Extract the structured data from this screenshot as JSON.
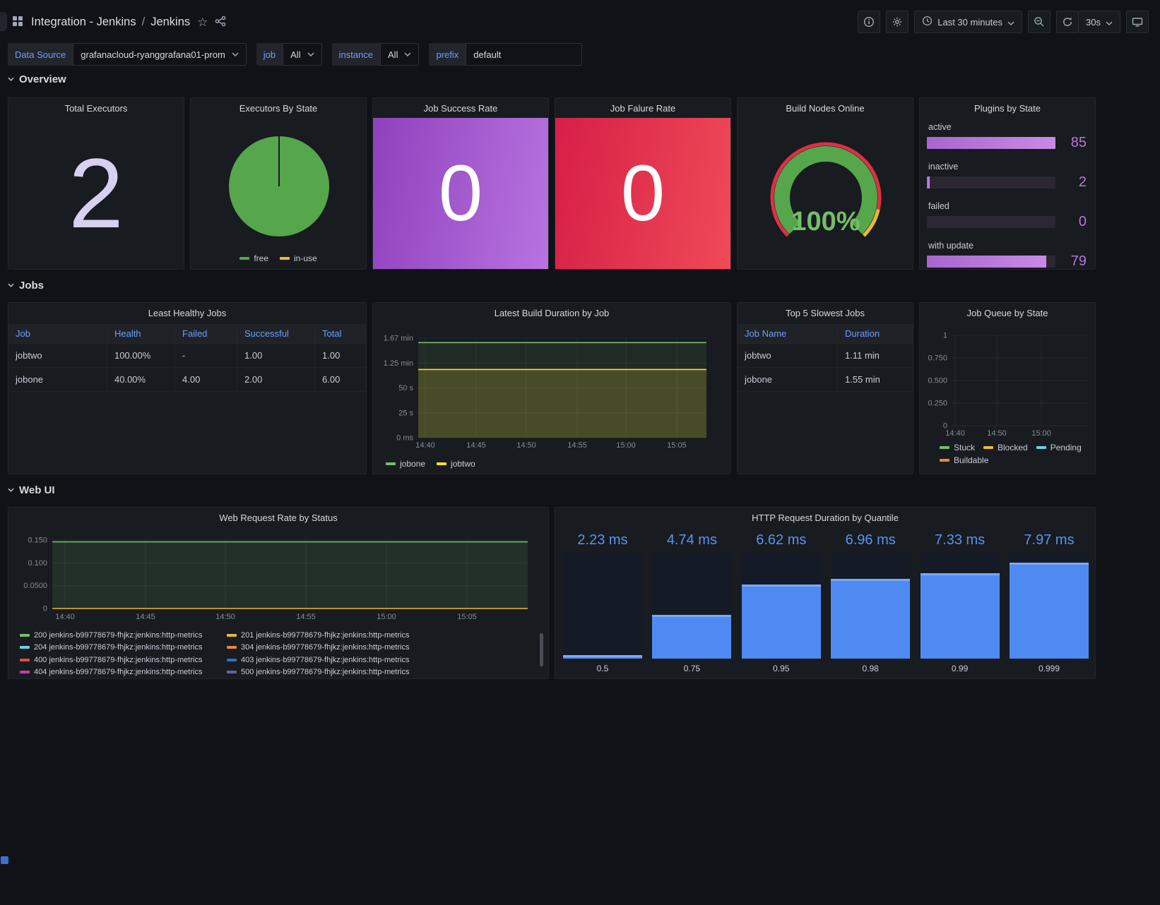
{
  "header": {
    "breadcrumb": {
      "folder": "Integration - Jenkins",
      "separator": "/",
      "dashboard": "Jenkins"
    },
    "toolbar": {
      "time_range_label": "Last 30 minutes",
      "refresh_interval_label": "30s"
    },
    "icons": [
      "apps-grid",
      "star",
      "share",
      "info-circle",
      "settings-gear",
      "clock",
      "chevron-down",
      "zoom-out",
      "refresh",
      "tv-monitor"
    ]
  },
  "variables": [
    {
      "label": "Data Source",
      "value": "grafanacloud-ryanggrafana01-prom"
    },
    {
      "label": "job",
      "value": "All"
    },
    {
      "label": "instance",
      "value": "All"
    },
    {
      "label": "prefix",
      "value": "default"
    }
  ],
  "sections": [
    {
      "label": "Overview"
    },
    {
      "label": "Jobs"
    },
    {
      "label": "Web UI"
    }
  ],
  "panels": {
    "total_executors": {
      "title": "Total Executors",
      "value": "2",
      "value_color": "#d7d0f1"
    },
    "executors_by_state": {
      "title": "Executors By State"
    },
    "job_success_rate": {
      "title": "Job Success Rate",
      "value": "0",
      "gradient": [
        "#8f41bd",
        "#b873e0"
      ]
    },
    "job_failure_rate": {
      "title": "Job Falure Rate",
      "value": "0",
      "gradient": [
        "#d61f47",
        "#f04a57"
      ]
    },
    "build_nodes_online": {
      "title": "Build Nodes Online"
    },
    "plugins_by_state": {
      "title": "Plugins by State",
      "max": 85,
      "bar_color": "#B877D9",
      "bars": [
        {
          "label": "active",
          "value": 85
        },
        {
          "label": "inactive",
          "value": 2
        },
        {
          "label": "failed",
          "value": 0
        },
        {
          "label": "with update",
          "value": 79
        }
      ]
    },
    "least_healthy_jobs": {
      "title": "Least Healthy Jobs",
      "columns": [
        "Job",
        "Health",
        "Failed",
        "Successful",
        "Total"
      ],
      "rows": [
        [
          "jobtwo",
          "100.00%",
          "-",
          "1.00",
          "1.00"
        ],
        [
          "jobone",
          "40.00%",
          "4.00",
          "2.00",
          "6.00"
        ]
      ]
    },
    "latest_build_duration": {
      "title": "Latest Build Duration by Job"
    },
    "top_5_slowest_jobs": {
      "title": "Top 5 Slowest Jobs",
      "columns": [
        "Job Name",
        "Duration"
      ],
      "rows": [
        [
          "jobtwo",
          "1.11 min"
        ],
        [
          "jobone",
          "1.55 min"
        ]
      ]
    },
    "job_queue_by_state": {
      "title": "Job Queue by State"
    },
    "web_request_rate": {
      "title": "Web Request Rate by Status"
    },
    "http_request_duration": {
      "title": "HTTP Request Duration by Quantile"
    }
  },
  "chart_data": [
    {
      "id": "executors_by_state",
      "type": "pie",
      "title": "Executors By State",
      "slices": [
        {
          "label": "free",
          "value": 2,
          "color": "#56A64B"
        },
        {
          "label": "in-use",
          "value": 0,
          "color": "#EAB839"
        }
      ]
    },
    {
      "id": "build_nodes_online",
      "type": "gauge",
      "title": "Build Nodes Online",
      "value_percent": 100,
      "value_label": "100%",
      "arc_color": "#56A64B",
      "ring_colors": {
        "red": "#E02F44",
        "yellow": "#EAB839"
      }
    },
    {
      "id": "latest_build_duration",
      "type": "line",
      "title": "Latest Build Duration by Job",
      "x_ticks": [
        "14:40",
        "14:45",
        "14:50",
        "14:55",
        "15:00",
        "15:05"
      ],
      "y_ticks": [
        "0 ms",
        "25 s",
        "50 s",
        "1.25 min",
        "1.67 min"
      ],
      "y_unit": "seconds",
      "y_range": [
        0,
        100
      ],
      "series": [
        {
          "name": "jobone",
          "color": "#73BF69",
          "value": 95.5,
          "fill_opacity": 0.1
        },
        {
          "name": "jobtwo",
          "color": "#FADE2A",
          "value": 68.5,
          "fill_opacity": 0.18
        }
      ]
    },
    {
      "id": "job_queue_by_state",
      "type": "line",
      "title": "Job Queue by State",
      "x_ticks": [
        "14:40",
        "14:50",
        "15:00"
      ],
      "y_ticks": [
        "0",
        "0.250",
        "0.500",
        "0.750",
        "1"
      ],
      "y_range": [
        0,
        1
      ],
      "series": [
        {
          "name": "Stuck",
          "color": "#73BF69",
          "value": null
        },
        {
          "name": "Blocked",
          "color": "#EAB839",
          "value": null
        },
        {
          "name": "Pending",
          "color": "#6ED0E0",
          "value": null
        },
        {
          "name": "Buildable",
          "color": "#EF843C",
          "value": null
        }
      ]
    },
    {
      "id": "web_request_rate",
      "type": "line",
      "title": "Web Request Rate by Status",
      "x_ticks": [
        "14:40",
        "14:45",
        "14:50",
        "14:55",
        "15:00",
        "15:05"
      ],
      "y_ticks": [
        "0",
        "0.0500",
        "0.100",
        "0.150"
      ],
      "y_range": [
        0,
        0.15
      ],
      "legend_order": "column-major",
      "series": [
        {
          "name": "200 jenkins-b99778679-fhjkz:jenkins:http-metrics",
          "color": "#73BF69",
          "value": 0.146,
          "fill_opacity": 0.13
        },
        {
          "name": "204 jenkins-b99778679-fhjkz:jenkins:http-metrics",
          "color": "#6ED0E0",
          "value": null
        },
        {
          "name": "400 jenkins-b99778679-fhjkz:jenkins:http-metrics",
          "color": "#E24D42",
          "value": null
        },
        {
          "name": "404 jenkins-b99778679-fhjkz:jenkins:http-metrics",
          "color": "#BA43A9",
          "value": null
        },
        {
          "name": "201 jenkins-b99778679-fhjkz:jenkins:http-metrics",
          "color": "#EAB839",
          "value": 0
        },
        {
          "name": "304 jenkins-b99778679-fhjkz:jenkins:http-metrics",
          "color": "#EF843C",
          "value": null
        },
        {
          "name": "403 jenkins-b99778679-fhjkz:jenkins:http-metrics",
          "color": "#1F78C1",
          "value": null
        },
        {
          "name": "500 jenkins-b99778679-fhjkz:jenkins:http-metrics",
          "color": "#705DA0",
          "value": null
        }
      ]
    },
    {
      "id": "http_request_duration",
      "type": "bar",
      "title": "HTTP Request Duration by Quantile",
      "categories": [
        "0.5",
        "0.75",
        "0.95",
        "0.98",
        "0.99",
        "0.999"
      ],
      "values_ms": [
        2.23,
        4.74,
        6.62,
        6.96,
        7.33,
        7.97
      ],
      "value_labels": [
        "2.23 ms",
        "4.74 ms",
        "6.62 ms",
        "6.96 ms",
        "7.33 ms",
        "7.97 ms"
      ],
      "bar_color": "#4f8af3",
      "scale_ms": {
        "min": 2,
        "max": 8.6
      }
    },
    {
      "id": "plugins_by_state",
      "type": "bar",
      "title": "Plugins by State",
      "orientation": "horizontal",
      "categories": [
        "active",
        "inactive",
        "failed",
        "with update"
      ],
      "values": [
        85,
        2,
        0,
        79
      ],
      "bar_color": "#B877D9"
    }
  ]
}
